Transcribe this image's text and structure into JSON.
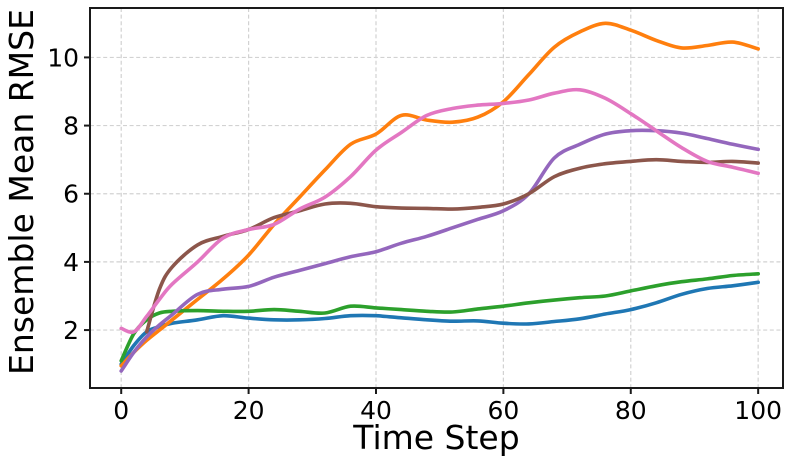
{
  "figure": {
    "title": "",
    "background": "#ffffff",
    "spine_color": "#1a1a1a",
    "grid_color": "#d2d2d2",
    "text_color": "#000000"
  },
  "chart_data": {
    "type": "line",
    "title": "",
    "xlabel": "Time Step",
    "ylabel": "Ensemble Mean RMSE",
    "xlim": [
      -4.9,
      103.9
    ],
    "ylim": [
      0.3,
      11.45
    ],
    "xticks": [
      0,
      20,
      40,
      60,
      80,
      100
    ],
    "yticks": [
      2,
      4,
      6,
      8,
      10
    ],
    "grid": true,
    "grid_linestyle": "dashed",
    "legend_position": "none",
    "x": [
      0,
      2,
      4,
      6,
      8,
      12,
      16,
      20,
      24,
      28,
      32,
      36,
      40,
      44,
      48,
      52,
      56,
      60,
      64,
      68,
      72,
      76,
      80,
      84,
      88,
      92,
      96,
      100
    ],
    "series": [
      {
        "name": "blue",
        "color": "#1f77b4",
        "values": [
          1.0,
          1.55,
          1.95,
          2.1,
          2.2,
          2.3,
          2.42,
          2.35,
          2.3,
          2.3,
          2.34,
          2.42,
          2.42,
          2.36,
          2.3,
          2.26,
          2.27,
          2.2,
          2.18,
          2.25,
          2.33,
          2.47,
          2.6,
          2.8,
          3.05,
          3.22,
          3.3,
          3.4
        ]
      },
      {
        "name": "orange",
        "color": "#ff7f0e",
        "values": [
          0.95,
          1.35,
          1.7,
          2.0,
          2.3,
          2.9,
          3.5,
          4.2,
          5.1,
          5.9,
          6.7,
          7.45,
          7.75,
          8.3,
          8.16,
          8.1,
          8.25,
          8.7,
          9.5,
          10.3,
          10.75,
          11.0,
          10.8,
          10.5,
          10.28,
          10.35,
          10.45,
          10.25
        ]
      },
      {
        "name": "green",
        "color": "#2ca02c",
        "values": [
          1.1,
          1.9,
          2.3,
          2.5,
          2.55,
          2.57,
          2.55,
          2.55,
          2.6,
          2.55,
          2.5,
          2.7,
          2.65,
          2.6,
          2.55,
          2.53,
          2.62,
          2.7,
          2.8,
          2.88,
          2.95,
          3.0,
          3.15,
          3.3,
          3.42,
          3.5,
          3.6,
          3.65
        ]
      },
      {
        "name": "purple",
        "color": "#9467bd",
        "values": [
          0.8,
          1.35,
          1.8,
          2.15,
          2.45,
          3.05,
          3.2,
          3.28,
          3.55,
          3.75,
          3.95,
          4.15,
          4.3,
          4.55,
          4.75,
          5.0,
          5.25,
          5.5,
          6.0,
          7.05,
          7.45,
          7.75,
          7.85,
          7.85,
          7.78,
          7.62,
          7.45,
          7.3
        ]
      },
      {
        "name": "brown",
        "color": "#8c564b",
        "values": [
          null,
          null,
          1.95,
          3.2,
          3.85,
          4.5,
          4.75,
          4.95,
          5.3,
          5.5,
          5.7,
          5.72,
          5.62,
          5.58,
          5.57,
          5.55,
          5.6,
          5.7,
          6.0,
          6.5,
          6.75,
          6.88,
          6.95,
          7.0,
          6.95,
          6.92,
          6.95,
          6.9
        ]
      },
      {
        "name": "pink",
        "color": "#e377c2",
        "values": [
          2.05,
          1.95,
          2.4,
          2.9,
          3.35,
          4.0,
          4.7,
          4.95,
          5.1,
          5.55,
          5.9,
          6.5,
          7.28,
          7.8,
          8.3,
          8.5,
          8.6,
          8.65,
          8.75,
          8.95,
          9.05,
          8.8,
          8.35,
          7.85,
          7.35,
          6.95,
          6.78,
          6.6
        ]
      }
    ]
  }
}
